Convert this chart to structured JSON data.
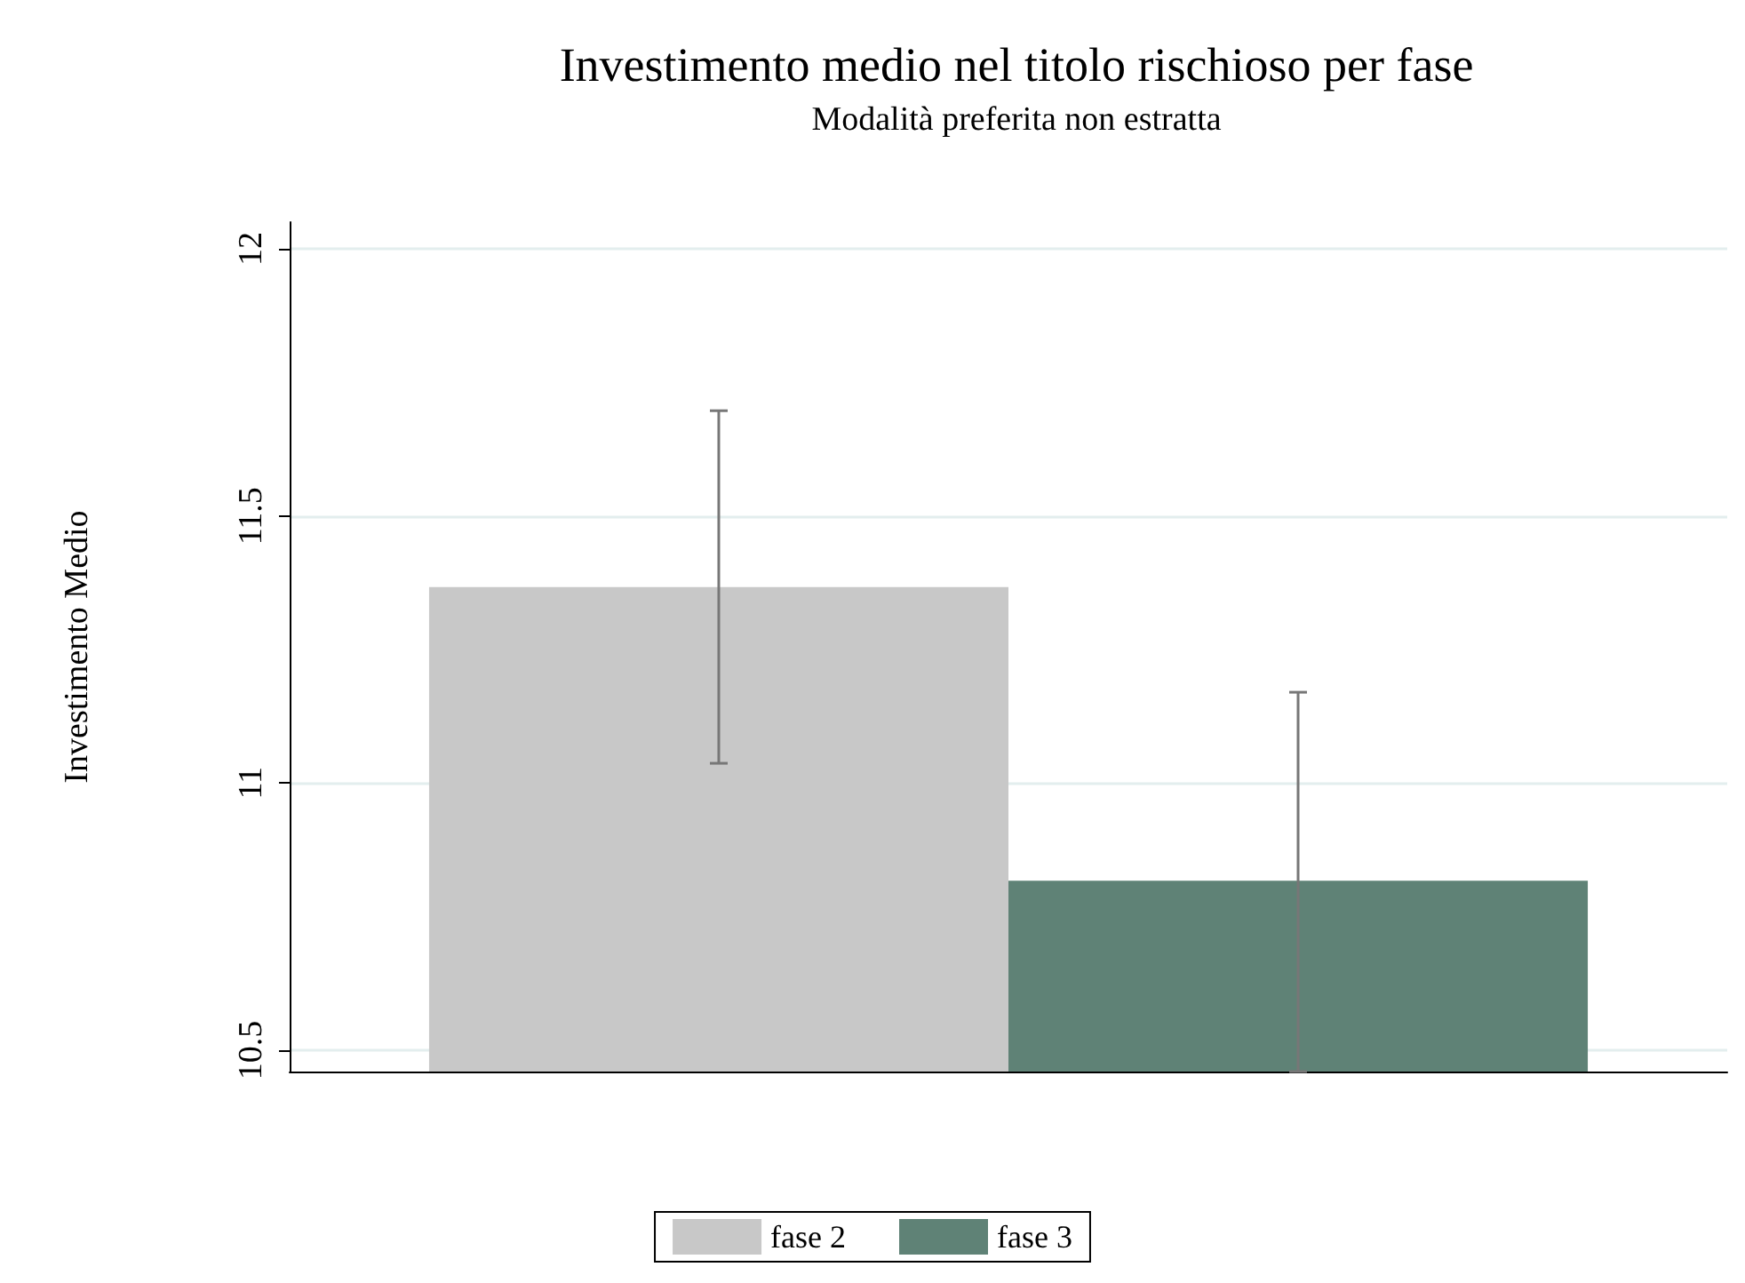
{
  "chart_data": {
    "type": "bar",
    "title": "Investimento medio nel titolo rischioso per fase",
    "subtitle": "Modalità preferita non estratta",
    "ylabel": "Investimento Medio",
    "categories": [
      null
    ],
    "series": [
      {
        "name": "fase 2",
        "color": "#c8c8c8",
        "values": [
          11.367
        ],
        "errors": [
          [
            11.037,
            11.697
          ]
        ]
      },
      {
        "name": "fase 3",
        "color": "#5f8276",
        "values": [
          10.817
        ],
        "errors": [
          [
            10.46,
            11.17
          ]
        ]
      }
    ],
    "ylim": [
      10.46,
      12.05
    ],
    "yticks": [
      10.5,
      11,
      11.5,
      12
    ],
    "grid": "y",
    "legend": "bottom"
  }
}
